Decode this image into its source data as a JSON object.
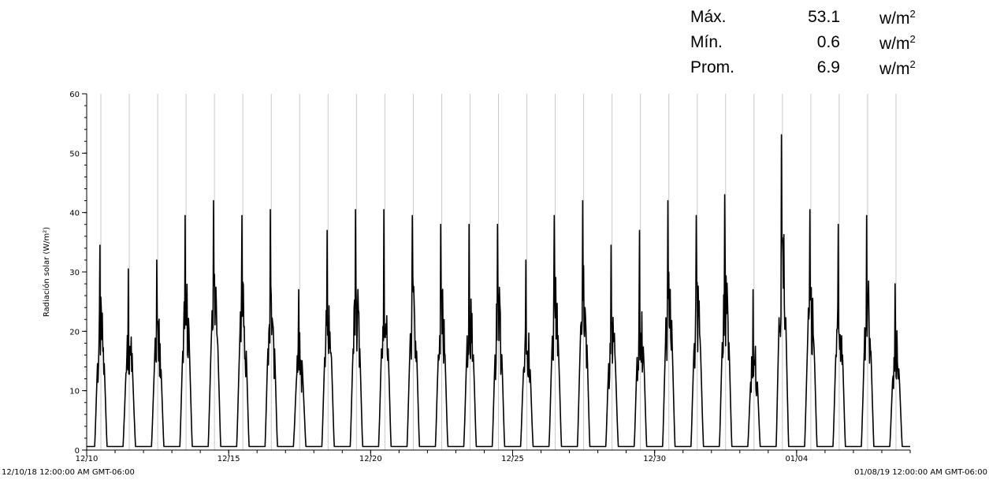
{
  "stats": [
    {
      "label": "Máx.",
      "value": "53.1",
      "unit": "w/m",
      "unit_exp": "2"
    },
    {
      "label": "Mín.",
      "value": "0.6",
      "unit": "w/m",
      "unit_exp": "2"
    },
    {
      "label": "Prom.",
      "value": "6.9",
      "unit": "w/m",
      "unit_exp": "2"
    }
  ],
  "range_labels": {
    "start": "12/10/18 12:00:00 AM GMT-06:00",
    "end": "01/08/19 12:00:00 AM GMT-06:00"
  },
  "chart_data": {
    "type": "line",
    "ylabel": "Radiación solar (W/m²)",
    "xlabel": "",
    "ylim": [
      0,
      60
    ],
    "yticks": [
      0,
      10,
      20,
      30,
      40,
      50,
      60
    ],
    "x_start": "2018-12-10",
    "x_end": "2019-01-08",
    "xticks": [
      {
        "date": "2018-12-10",
        "label": "12/10"
      },
      {
        "date": "2018-12-15",
        "label": "12/15"
      },
      {
        "date": "2018-12-20",
        "label": "12/20"
      },
      {
        "date": "2018-12-25",
        "label": "12/25"
      },
      {
        "date": "2018-12-30",
        "label": "12/30"
      },
      {
        "date": "2019-01-04",
        "label": "01/04"
      }
    ],
    "grid": "vertical-daily",
    "series": [
      {
        "color": "#000000",
        "baseline": 0.6,
        "daily_peaks": [
          {
            "date": "2018-12-10",
            "peak": 34.5
          },
          {
            "date": "2018-12-11",
            "peak": 30.5
          },
          {
            "date": "2018-12-12",
            "peak": 32.0
          },
          {
            "date": "2018-12-13",
            "peak": 39.5
          },
          {
            "date": "2018-12-14",
            "peak": 42.0
          },
          {
            "date": "2018-12-15",
            "peak": 39.5
          },
          {
            "date": "2018-12-16",
            "peak": 40.5
          },
          {
            "date": "2018-12-17",
            "peak": 27.0
          },
          {
            "date": "2018-12-18",
            "peak": 37.0
          },
          {
            "date": "2018-12-19",
            "peak": 40.5
          },
          {
            "date": "2018-12-20",
            "peak": 40.5
          },
          {
            "date": "2018-12-21",
            "peak": 39.5
          },
          {
            "date": "2018-12-22",
            "peak": 38.0
          },
          {
            "date": "2018-12-23",
            "peak": 38.0
          },
          {
            "date": "2018-12-24",
            "peak": 38.0
          },
          {
            "date": "2018-12-25",
            "peak": 32.0
          },
          {
            "date": "2018-12-26",
            "peak": 39.5
          },
          {
            "date": "2018-12-27",
            "peak": 42.0
          },
          {
            "date": "2018-12-28",
            "peak": 34.5
          },
          {
            "date": "2018-12-29",
            "peak": 37.0
          },
          {
            "date": "2018-12-30",
            "peak": 42.0
          },
          {
            "date": "2018-12-31",
            "peak": 39.5
          },
          {
            "date": "2019-01-01",
            "peak": 43.0
          },
          {
            "date": "2019-01-02",
            "peak": 27.0
          },
          {
            "date": "2019-01-03",
            "peak": 53.1
          },
          {
            "date": "2019-01-04",
            "peak": 40.5
          },
          {
            "date": "2019-01-05",
            "peak": 38.0
          },
          {
            "date": "2019-01-06",
            "peak": 39.5
          },
          {
            "date": "2019-01-07",
            "peak": 28.0
          }
        ]
      }
    ]
  }
}
